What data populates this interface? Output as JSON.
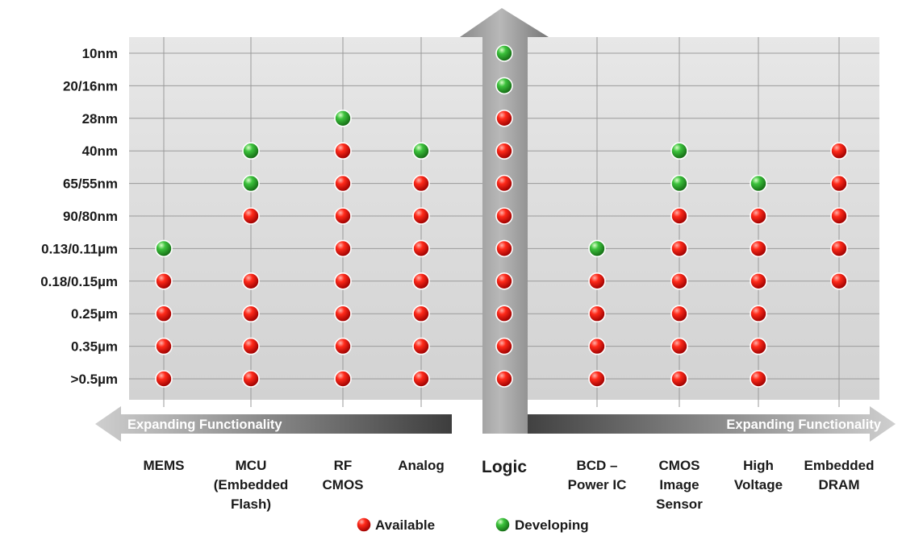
{
  "chart_data": {
    "type": "scatter",
    "title": "",
    "xlabel": "",
    "ylabel": "",
    "categories": [
      {
        "label": [
          "MEMS"
        ]
      },
      {
        "label": [
          "MCU",
          "(Embedded",
          "Flash)"
        ]
      },
      {
        "label": [
          "RF",
          "CMOS"
        ]
      },
      {
        "label": [
          "Analog"
        ]
      },
      {
        "label": [
          "Logic"
        ],
        "emphasis": true
      },
      {
        "label": [
          "BCD –",
          "Power IC"
        ]
      },
      {
        "label": [
          "CMOS",
          "Image",
          "Sensor"
        ]
      },
      {
        "label": [
          "High",
          "Voltage"
        ]
      },
      {
        "label": [
          "Embedded",
          "DRAM"
        ]
      }
    ],
    "y_levels": [
      "10nm",
      "20/16nm",
      "28nm",
      "40nm",
      "65/55nm",
      "90/80nm",
      "0.13/0.11µm",
      "0.18/0.15µm",
      "0.25µm",
      "0.35µm",
      ">0.5µm"
    ],
    "series": [
      {
        "name": "Available",
        "color": "#e00000",
        "points": [
          [
            "MEMS",
            "0.18/0.15µm"
          ],
          [
            "MEMS",
            "0.25µm"
          ],
          [
            "MEMS",
            "0.35µm"
          ],
          [
            "MEMS",
            ">0.5µm"
          ],
          [
            "MCU (Embedded Flash)",
            "90/80nm"
          ],
          [
            "MCU (Embedded Flash)",
            "0.18/0.15µm"
          ],
          [
            "MCU (Embedded Flash)",
            "0.25µm"
          ],
          [
            "MCU (Embedded Flash)",
            "0.35µm"
          ],
          [
            "MCU (Embedded Flash)",
            ">0.5µm"
          ],
          [
            "RF CMOS",
            "40nm"
          ],
          [
            "RF CMOS",
            "65/55nm"
          ],
          [
            "RF CMOS",
            "90/80nm"
          ],
          [
            "RF CMOS",
            "0.13/0.11µm"
          ],
          [
            "RF CMOS",
            "0.18/0.15µm"
          ],
          [
            "RF CMOS",
            "0.25µm"
          ],
          [
            "RF CMOS",
            "0.35µm"
          ],
          [
            "RF CMOS",
            ">0.5µm"
          ],
          [
            "Analog",
            "65/55nm"
          ],
          [
            "Analog",
            "90/80nm"
          ],
          [
            "Analog",
            "0.13/0.11µm"
          ],
          [
            "Analog",
            "0.18/0.15µm"
          ],
          [
            "Analog",
            "0.25µm"
          ],
          [
            "Analog",
            "0.35µm"
          ],
          [
            "Analog",
            ">0.5µm"
          ],
          [
            "Logic",
            "28nm"
          ],
          [
            "Logic",
            "40nm"
          ],
          [
            "Logic",
            "65/55nm"
          ],
          [
            "Logic",
            "90/80nm"
          ],
          [
            "Logic",
            "0.13/0.11µm"
          ],
          [
            "Logic",
            "0.18/0.15µm"
          ],
          [
            "Logic",
            "0.25µm"
          ],
          [
            "Logic",
            "0.35µm"
          ],
          [
            "Logic",
            ">0.5µm"
          ],
          [
            "BCD – Power IC",
            "0.18/0.15µm"
          ],
          [
            "BCD – Power IC",
            "0.25µm"
          ],
          [
            "BCD – Power IC",
            "0.35µm"
          ],
          [
            "BCD – Power IC",
            ">0.5µm"
          ],
          [
            "CMOS Image Sensor",
            "90/80nm"
          ],
          [
            "CMOS Image Sensor",
            "0.13/0.11µm"
          ],
          [
            "CMOS Image Sensor",
            "0.18/0.15µm"
          ],
          [
            "CMOS Image Sensor",
            "0.25µm"
          ],
          [
            "CMOS Image Sensor",
            "0.35µm"
          ],
          [
            "CMOS Image Sensor",
            ">0.5µm"
          ],
          [
            "High Voltage",
            "90/80nm"
          ],
          [
            "High Voltage",
            "0.13/0.11µm"
          ],
          [
            "High Voltage",
            "0.18/0.15µm"
          ],
          [
            "High Voltage",
            "0.25µm"
          ],
          [
            "High Voltage",
            "0.35µm"
          ],
          [
            "High Voltage",
            ">0.5µm"
          ],
          [
            "Embedded DRAM",
            "40nm"
          ],
          [
            "Embedded DRAM",
            "65/55nm"
          ],
          [
            "Embedded DRAM",
            "90/80nm"
          ],
          [
            "Embedded DRAM",
            "0.13/0.11µm"
          ],
          [
            "Embedded DRAM",
            "0.18/0.15µm"
          ]
        ]
      },
      {
        "name": "Developing",
        "color": "#22a02a",
        "points": [
          [
            "MEMS",
            "0.13/0.11µm"
          ],
          [
            "MCU (Embedded Flash)",
            "40nm"
          ],
          [
            "MCU (Embedded Flash)",
            "65/55nm"
          ],
          [
            "RF CMOS",
            "28nm"
          ],
          [
            "Analog",
            "40nm"
          ],
          [
            "Logic",
            "10nm"
          ],
          [
            "Logic",
            "20/16nm"
          ],
          [
            "BCD – Power IC",
            "0.13/0.11µm"
          ],
          [
            "CMOS Image Sensor",
            "40nm"
          ],
          [
            "CMOS Image Sensor",
            "65/55nm"
          ],
          [
            "High Voltage",
            "65/55nm"
          ]
        ]
      }
    ],
    "arrow_labels": {
      "left": "Expanding Functionality",
      "right": "Expanding Functionality"
    },
    "legend": {
      "placement": "bottom-center",
      "items": [
        {
          "label": "Available",
          "color": "#e00000"
        },
        {
          "label": "Developing",
          "color": "#22a02a"
        }
      ]
    },
    "grid": true
  }
}
